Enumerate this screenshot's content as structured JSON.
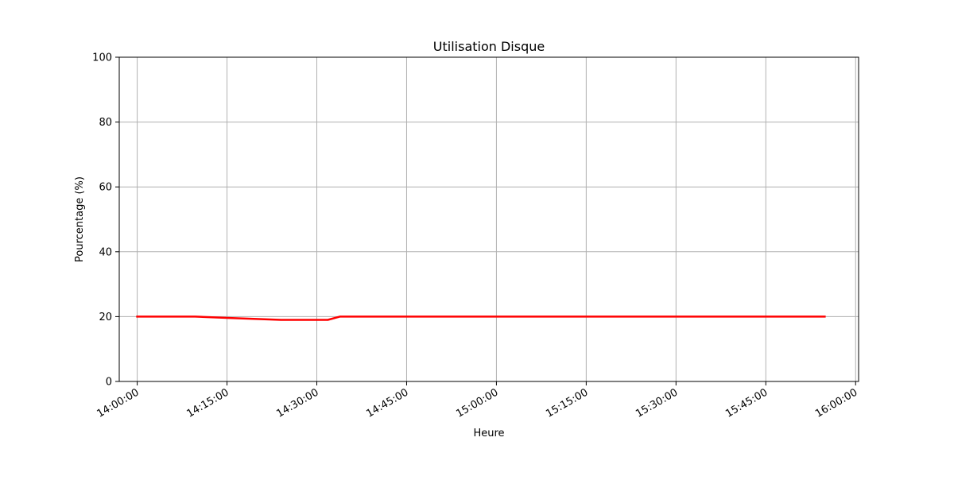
{
  "chart_data": {
    "type": "line",
    "title": "Utilisation Disque",
    "xlabel": "Heure",
    "ylabel": "Pourcentage (%)",
    "ylim": [
      0,
      100
    ],
    "xlim": [
      "13:57:00",
      "16:00:30"
    ],
    "grid": true,
    "yticks": [
      0,
      20,
      40,
      60,
      80,
      100
    ],
    "xticks": [
      "14:00:00",
      "14:15:00",
      "14:30:00",
      "14:45:00",
      "15:00:00",
      "15:15:00",
      "15:30:00",
      "15:45:00",
      "16:00:00"
    ],
    "series": [
      {
        "color": "#ff0000",
        "points": [
          [
            "13:59:50",
            20
          ],
          [
            "14:09:40",
            20
          ],
          [
            "14:15:00",
            19.6
          ],
          [
            "14:24:00",
            19
          ],
          [
            "14:31:50",
            19
          ],
          [
            "14:33:50",
            20
          ],
          [
            "15:55:00",
            20
          ]
        ]
      }
    ]
  }
}
